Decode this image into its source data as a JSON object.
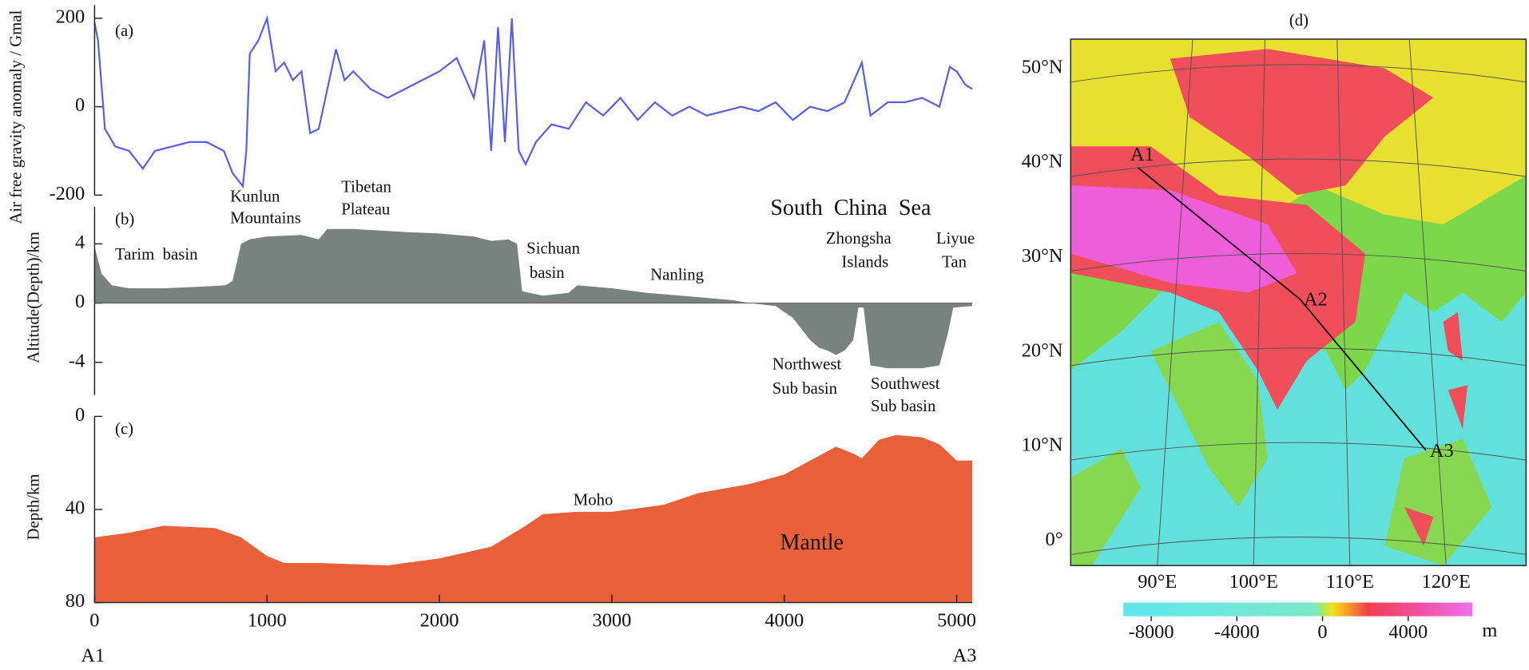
{
  "chart_data": [
    {
      "type": "line",
      "title": "(a)",
      "ylabel": "Air free gravity anomaly / Gmal",
      "xlim": [
        0,
        5090
      ],
      "ylim": [
        -200,
        230
      ],
      "yticks": [
        -200,
        0,
        200
      ],
      "series": [
        {
          "color": "#5a5ee6",
          "x": [
            0,
            20,
            60,
            120,
            200,
            280,
            350,
            450,
            550,
            650,
            750,
            800,
            860,
            880,
            900,
            950,
            1000,
            1050,
            1100,
            1150,
            1200,
            1250,
            1300,
            1400,
            1450,
            1500,
            1600,
            1700,
            1800,
            1900,
            2000,
            2100,
            2200,
            2260,
            2300,
            2340,
            2380,
            2420,
            2460,
            2500,
            2560,
            2650,
            2750,
            2850,
            2950,
            3050,
            3150,
            3250,
            3350,
            3450,
            3550,
            3650,
            3750,
            3850,
            3950,
            4050,
            4150,
            4250,
            4350,
            4450,
            4500,
            4600,
            4700,
            4800,
            4900,
            4960,
            5000,
            5050,
            5090
          ],
          "values": [
            190,
            150,
            -50,
            -90,
            -100,
            -140,
            -100,
            -90,
            -80,
            -80,
            -100,
            -150,
            -180,
            -100,
            120,
            150,
            200,
            80,
            100,
            60,
            80,
            -60,
            -50,
            130,
            60,
            80,
            40,
            20,
            40,
            60,
            80,
            110,
            20,
            150,
            -100,
            180,
            -80,
            200,
            -100,
            -130,
            -80,
            -40,
            -50,
            10,
            -20,
            20,
            -30,
            10,
            -20,
            0,
            -20,
            -10,
            0,
            -10,
            10,
            -30,
            0,
            -10,
            10,
            100,
            -20,
            10,
            10,
            20,
            0,
            90,
            80,
            50,
            40
          ]
        }
      ],
      "annotations": []
    },
    {
      "type": "area",
      "title": "(b)",
      "ylabel": "Altitude(Depth)/km",
      "xlim": [
        0,
        5090
      ],
      "ylim": [
        -6.2,
        6.5
      ],
      "yticks": [
        -4,
        0,
        4
      ],
      "series": [
        {
          "color": "#78837f",
          "x": [
            0,
            40,
            100,
            200,
            400,
            600,
            760,
            800,
            850,
            900,
            1000,
            1200,
            1300,
            1350,
            1500,
            1800,
            2000,
            2200,
            2300,
            2400,
            2450,
            2480,
            2600,
            2750,
            2800,
            3000,
            3200,
            3400,
            3600,
            3700,
            3800,
            3950,
            4050,
            4150,
            4200,
            4250,
            4300,
            4350,
            4400,
            4430,
            4460,
            4500,
            4600,
            4800,
            4900,
            4950,
            4980,
            5090
          ],
          "values": [
            3.8,
            2,
            1.2,
            1,
            1,
            1.1,
            1.2,
            1.5,
            4,
            4.3,
            4.5,
            4.6,
            4.3,
            5,
            5,
            4.8,
            4.7,
            4.5,
            4.2,
            4.3,
            4,
            0.8,
            0.5,
            0.7,
            1.2,
            1,
            0.7,
            0.5,
            0.3,
            0.2,
            0,
            -0.2,
            -1,
            -2.5,
            -3,
            -3.2,
            -3.5,
            -3.2,
            -2.5,
            -0.3,
            -0.3,
            -4.2,
            -4.4,
            -4.4,
            -4.2,
            -2,
            -0.3,
            -0.2
          ]
        }
      ],
      "annotations": [
        {
          "lines": [
            "Tarim  basin"
          ]
        },
        {
          "lines": [
            "Kunlun",
            "Mountains"
          ]
        },
        {
          "lines": [
            "Tibetan",
            "Plateau"
          ]
        },
        {
          "lines": [
            "South  China  Sea"
          ]
        },
        {
          "lines": [
            "Sichuan",
            "basin"
          ]
        },
        {
          "lines": [
            "Nanling"
          ]
        },
        {
          "lines": [
            "Zhongsha",
            "Islands"
          ]
        },
        {
          "lines": [
            "Liyue",
            "Tan"
          ]
        },
        {
          "lines": [
            "Northwest",
            "Sub basin"
          ]
        },
        {
          "lines": [
            "Southwest",
            "Sub basin"
          ]
        }
      ]
    },
    {
      "type": "area",
      "title": "(c)",
      "ylabel": "Depth/km",
      "xlim": [
        0,
        5090
      ],
      "ylim": [
        80,
        0
      ],
      "yticks": [
        0,
        40,
        80
      ],
      "xticks": [
        0,
        1000,
        2000,
        3000,
        4000,
        5000
      ],
      "xends": [
        "A1",
        "A3"
      ],
      "series": [
        {
          "color": "#e8603a",
          "x": [
            0,
            200,
            400,
            700,
            850,
            1000,
            1100,
            1300,
            1700,
            2000,
            2300,
            2500,
            2600,
            2800,
            3000,
            3300,
            3500,
            3800,
            4000,
            4200,
            4300,
            4400,
            4450,
            4550,
            4650,
            4800,
            4900,
            5000,
            5090
          ],
          "values": [
            52,
            50,
            47,
            48,
            52,
            60,
            63,
            63,
            64,
            61,
            56,
            47,
            42,
            41,
            41,
            38,
            33,
            29,
            25,
            17,
            13,
            16,
            18,
            10,
            8,
            9,
            12,
            19,
            19
          ]
        }
      ],
      "annotations": [
        {
          "lines": [
            "Moho"
          ]
        },
        {
          "lines": [
            "Mantle"
          ]
        }
      ]
    },
    {
      "type": "map",
      "title": "(d)",
      "xlim": [
        81,
        128.3
      ],
      "ylim": [
        -2.6,
        53.1
      ],
      "xticks": [
        {
          "value": 90,
          "label": "90°E"
        },
        {
          "value": 100,
          "label": "100°E"
        },
        {
          "value": 110,
          "label": "110°E"
        },
        {
          "value": 120,
          "label": "120°E"
        }
      ],
      "yticks": [
        {
          "value": 0,
          "label": "0°"
        },
        {
          "value": 10,
          "label": "10°N"
        },
        {
          "value": 20,
          "label": "20°N"
        },
        {
          "value": 30,
          "label": "30°N"
        },
        {
          "value": 40,
          "label": "40°N"
        },
        {
          "value": 50,
          "label": "50°N"
        }
      ],
      "route": [
        {
          "label": "A1",
          "lon": 88,
          "lat": 39.5
        },
        {
          "label": "A2",
          "lon": 104.8,
          "lat": 25.6
        },
        {
          "label": "A3",
          "lon": 117.9,
          "lat": 9.6
        }
      ],
      "colorbar": {
        "range": [
          -9300,
          7000
        ],
        "ticks": [
          -8000,
          -4000,
          0,
          4000
        ],
        "unit": "m"
      }
    }
  ]
}
